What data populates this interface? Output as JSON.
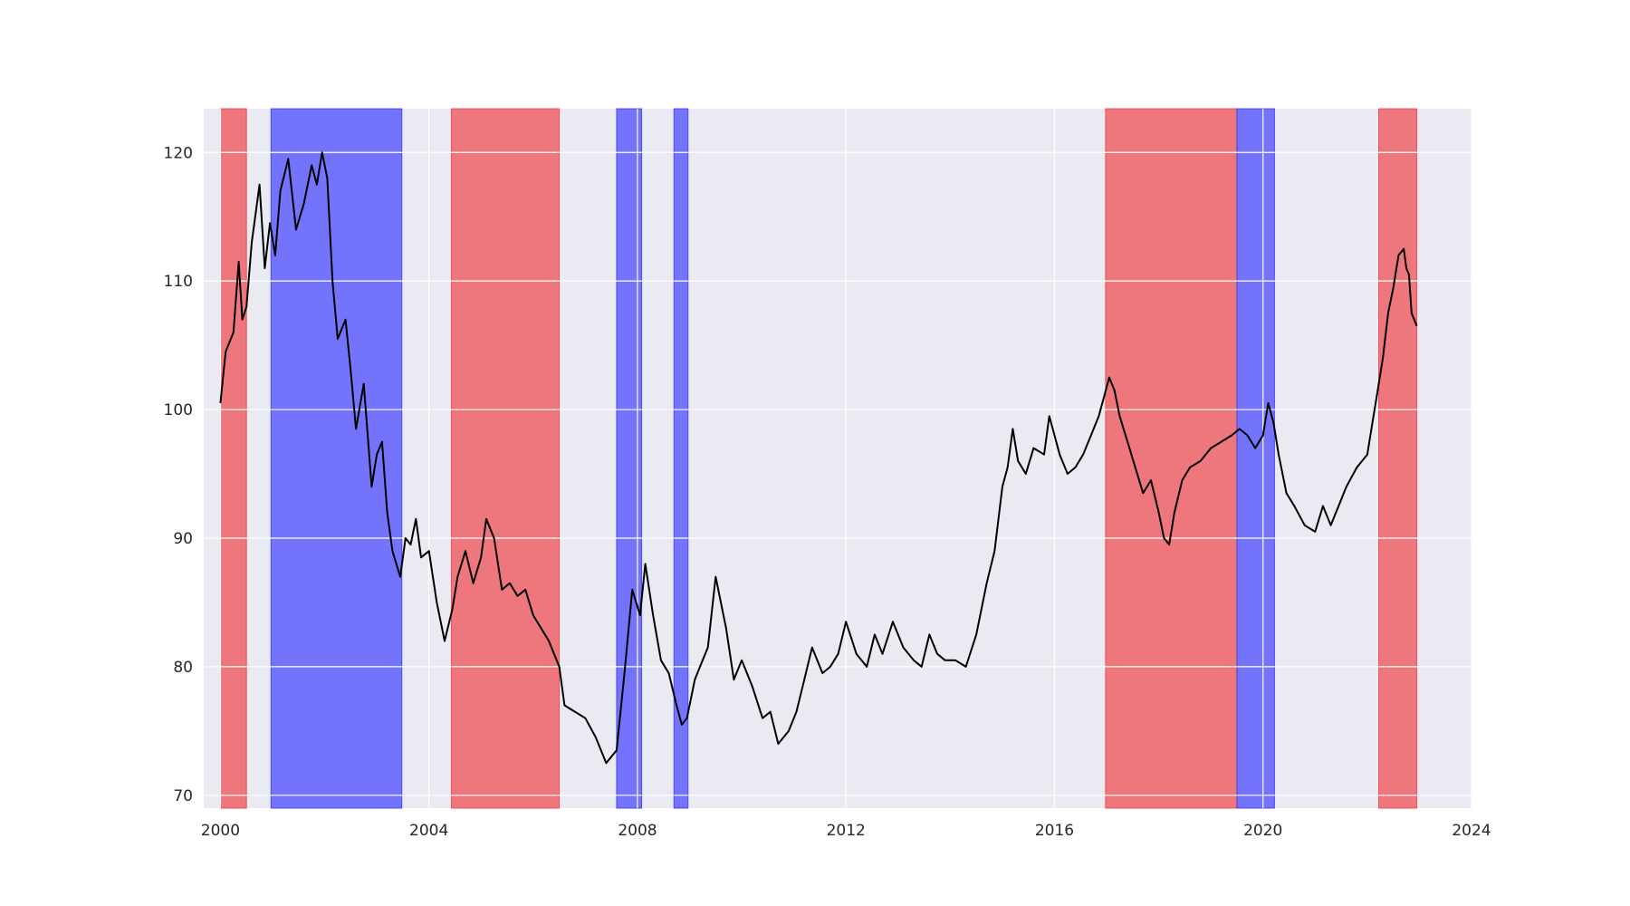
{
  "chart_data": {
    "type": "line",
    "title": "",
    "xlabel": "",
    "ylabel": "",
    "xlim": [
      1999.68,
      2024.0
    ],
    "ylim": [
      69.0,
      123.4
    ],
    "grid": true,
    "x_ticks": [
      2000,
      2004,
      2008,
      2012,
      2016,
      2020,
      2024
    ],
    "x_tick_labels": [
      "2000",
      "2004",
      "2008",
      "2012",
      "2016",
      "2020",
      "2024"
    ],
    "y_ticks": [
      70,
      80,
      90,
      100,
      110,
      120
    ],
    "y_tick_labels": [
      "70",
      "80",
      "90",
      "100",
      "110",
      "120"
    ],
    "colors": {
      "background": "#eaeaf2",
      "grid": "#ffffff",
      "line": "#000000",
      "red_band": "#f0393f",
      "blue_band": "#3333ff"
    },
    "shaded_regions": [
      {
        "start": 2000.0,
        "end": 2000.5,
        "color": "red"
      },
      {
        "start": 2000.97,
        "end": 2003.48,
        "color": "blue"
      },
      {
        "start": 2004.43,
        "end": 2006.5,
        "color": "red"
      },
      {
        "start": 2007.6,
        "end": 2008.08,
        "color": "blue"
      },
      {
        "start": 2008.7,
        "end": 2008.97,
        "color": "blue"
      },
      {
        "start": 2016.98,
        "end": 2019.5,
        "color": "red"
      },
      {
        "start": 2019.5,
        "end": 2020.22,
        "color": "blue"
      },
      {
        "start": 2022.22,
        "end": 2022.95,
        "color": "red"
      }
    ],
    "series": [
      {
        "x": [
          2000.0,
          2000.1,
          2000.25,
          2000.35,
          2000.42,
          2000.5,
          2000.6,
          2000.75,
          2000.85,
          2000.95,
          2001.05,
          2001.15,
          2001.3,
          2001.45,
          2001.6,
          2001.75,
          2001.85,
          2001.95,
          2002.05,
          2002.15,
          2002.25,
          2002.4,
          2002.5,
          2002.6,
          2002.75,
          2002.9,
          2003.0,
          2003.1,
          2003.2,
          2003.3,
          2003.45,
          2003.55,
          2003.65,
          2003.75,
          2003.85,
          2004.0,
          2004.15,
          2004.3,
          2004.45,
          2004.55,
          2004.7,
          2004.85,
          2005.0,
          2005.1,
          2005.25,
          2005.4,
          2005.55,
          2005.7,
          2005.85,
          2006.0,
          2006.15,
          2006.3,
          2006.5,
          2006.6,
          2006.8,
          2007.0,
          2007.2,
          2007.4,
          2007.6,
          2007.75,
          2007.9,
          2008.05,
          2008.15,
          2008.3,
          2008.45,
          2008.6,
          2008.75,
          2008.85,
          2008.95,
          2009.1,
          2009.2,
          2009.35,
          2009.5,
          2009.7,
          2009.85,
          2010.0,
          2010.2,
          2010.4,
          2010.55,
          2010.7,
          2010.9,
          2011.05,
          2011.2,
          2011.35,
          2011.55,
          2011.7,
          2011.85,
          2012.0,
          2012.2,
          2012.4,
          2012.55,
          2012.7,
          2012.9,
          2013.1,
          2013.3,
          2013.45,
          2013.6,
          2013.75,
          2013.9,
          2014.1,
          2014.3,
          2014.5,
          2014.7,
          2014.85,
          2015.0,
          2015.1,
          2015.2,
          2015.3,
          2015.45,
          2015.6,
          2015.8,
          2015.9,
          2016.0,
          2016.1,
          2016.25,
          2016.4,
          2016.55,
          2016.7,
          2016.85,
          2016.95,
          2017.05,
          2017.15,
          2017.25,
          2017.4,
          2017.55,
          2017.7,
          2017.85,
          2018.0,
          2018.1,
          2018.2,
          2018.3,
          2018.45,
          2018.6,
          2018.8,
          2019.0,
          2019.2,
          2019.4,
          2019.55,
          2019.7,
          2019.85,
          2020.0,
          2020.1,
          2020.2,
          2020.3,
          2020.45,
          2020.6,
          2020.8,
          2021.0,
          2021.15,
          2021.3,
          2021.45,
          2021.6,
          2021.8,
          2022.0,
          2022.1,
          2022.2,
          2022.3,
          2022.4,
          2022.5,
          2022.6,
          2022.7,
          2022.75,
          2022.8,
          2022.85,
          2022.95
        ],
        "y": [
          100.5,
          104.5,
          106.0,
          111.5,
          107.0,
          108.0,
          113.0,
          117.5,
          111.0,
          114.5,
          112.0,
          117.0,
          119.5,
          114.0,
          116.0,
          119.0,
          117.5,
          120.0,
          118.0,
          110.0,
          105.5,
          107.0,
          103.0,
          98.5,
          102.0,
          94.0,
          96.5,
          97.5,
          92.0,
          89.0,
          87.0,
          90.0,
          89.5,
          91.5,
          88.5,
          89.0,
          85.0,
          82.0,
          84.5,
          87.0,
          89.0,
          86.5,
          88.5,
          91.5,
          90.0,
          86.0,
          86.5,
          85.5,
          86.0,
          84.0,
          83.0,
          82.0,
          80.0,
          77.0,
          76.5,
          76.0,
          74.5,
          72.5,
          73.5,
          79.5,
          86.0,
          84.0,
          88.0,
          84.0,
          80.5,
          79.5,
          77.0,
          75.5,
          76.0,
          79.0,
          80.0,
          81.5,
          87.0,
          83.0,
          79.0,
          80.5,
          78.5,
          76.0,
          76.5,
          74.0,
          75.0,
          76.5,
          79.0,
          81.5,
          79.5,
          80.0,
          81.0,
          83.5,
          81.0,
          80.0,
          82.5,
          81.0,
          83.5,
          81.5,
          80.5,
          80.0,
          82.5,
          81.0,
          80.5,
          80.5,
          80.0,
          82.5,
          86.5,
          89.0,
          94.0,
          95.5,
          98.5,
          96.0,
          95.0,
          97.0,
          96.5,
          99.5,
          98.0,
          96.5,
          95.0,
          95.5,
          96.5,
          98.0,
          99.5,
          101.0,
          102.5,
          101.5,
          99.5,
          97.5,
          95.5,
          93.5,
          94.5,
          92.0,
          90.0,
          89.5,
          92.0,
          94.5,
          95.5,
          96.0,
          97.0,
          97.5,
          98.0,
          98.5,
          98.0,
          97.0,
          98.0,
          100.5,
          99.0,
          96.5,
          93.5,
          92.5,
          91.0,
          90.5,
          92.5,
          91.0,
          92.5,
          94.0,
          95.5,
          96.5,
          99.0,
          101.5,
          104.0,
          107.5,
          109.5,
          112.0,
          112.5,
          111.0,
          110.5,
          107.5,
          106.5
        ]
      }
    ]
  }
}
